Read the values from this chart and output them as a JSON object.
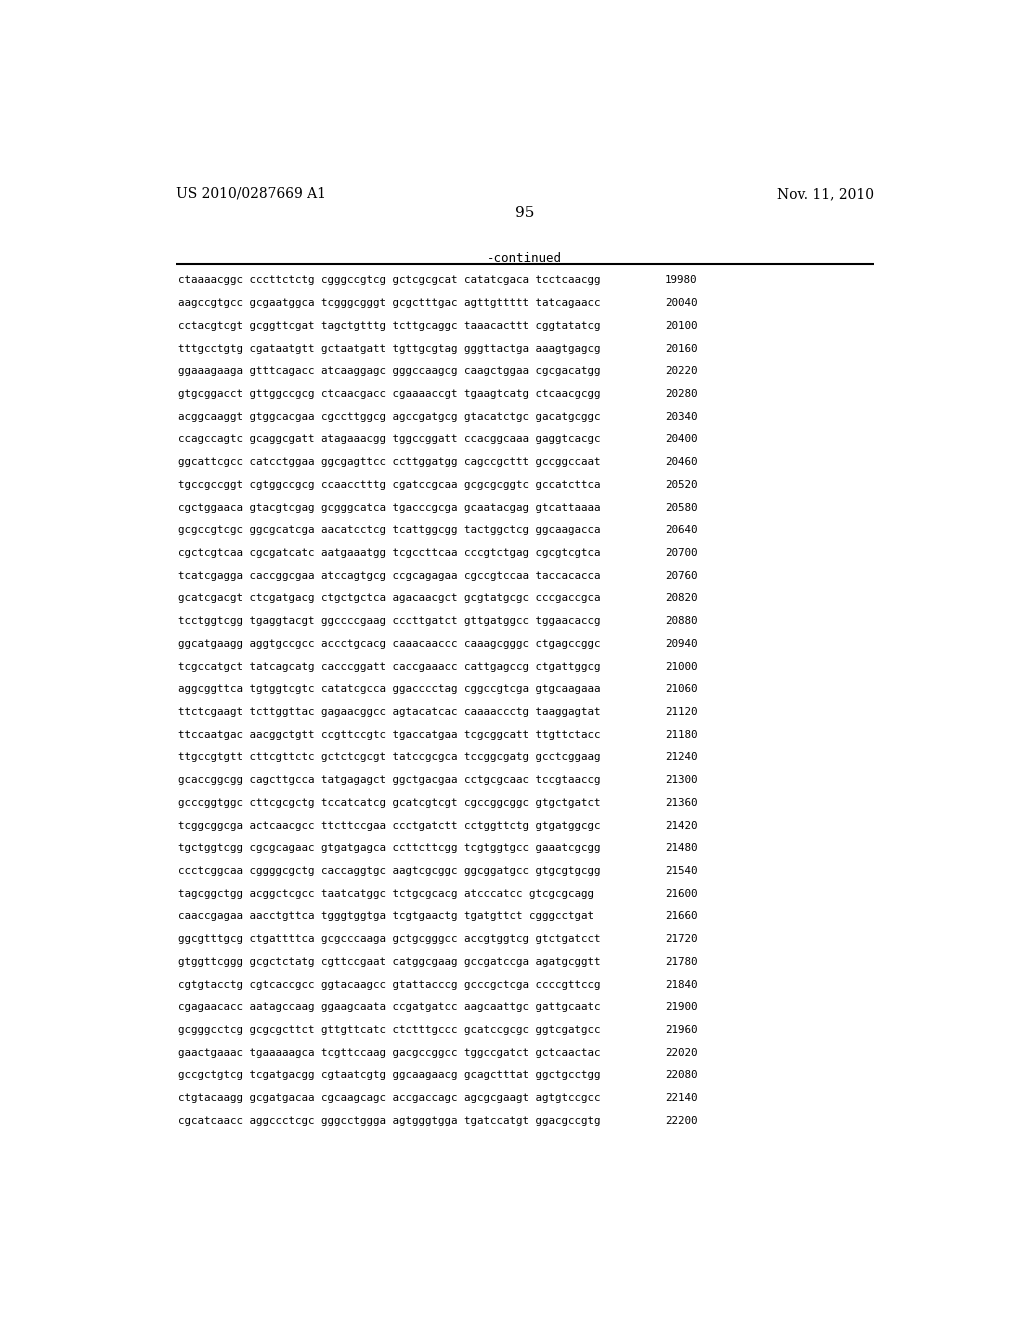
{
  "header_left": "US 2010/0287669 A1",
  "header_right": "Nov. 11, 2010",
  "page_number": "95",
  "continued_label": "-continued",
  "background_color": "#ffffff",
  "text_color": "#000000",
  "font_size_header": 10.0,
  "font_size_page": 11.0,
  "font_size_continued": 9.0,
  "font_size_sequence": 7.8,
  "sequence_lines": [
    [
      "ctaaaacggc cccttctctg cgggccgtcg gctcgcgcat catatcgaca tcctcaacgg",
      "19980"
    ],
    [
      "aagccgtgcc gcgaatggca tcgggcgggt gcgctttgac agttgttttt tatcagaacc",
      "20040"
    ],
    [
      "cctacgtcgt gcggttcgat tagctgtttg tcttgcaggc taaacacttt cggtatatcg",
      "20100"
    ],
    [
      "tttgcctgtg cgataatgtt gctaatgatt tgttgcgtag gggttactga aaagtgagcg",
      "20160"
    ],
    [
      "ggaaagaaga gtttcagacc atcaaggagc gggccaagcg caagctggaa cgcgacatgg",
      "20220"
    ],
    [
      "gtgcggacct gttggccgcg ctcaacgacc cgaaaaccgt tgaagtcatg ctcaacgcgg",
      "20280"
    ],
    [
      "acggcaaggt gtggcacgaa cgccttggcg agccgatgcg gtacatctgc gacatgcggc",
      "20340"
    ],
    [
      "ccagccagtc gcaggcgatt atagaaacgg tggccggatt ccacggcaaa gaggtcacgc",
      "20400"
    ],
    [
      "ggcattcgcc catcctggaa ggcgagttcc ccttggatgg cagccgcttt gccggccaat",
      "20460"
    ],
    [
      "tgccgccggt cgtggccgcg ccaacctttg cgatccgcaa gcgcgcggtc gccatcttca",
      "20520"
    ],
    [
      "cgctggaaca gtacgtcgag gcgggcatca tgacccgcga gcaatacgag gtcattaaaa",
      "20580"
    ],
    [
      "gcgccgtcgc ggcgcatcga aacatcctcg tcattggcgg tactggctcg ggcaagacca",
      "20640"
    ],
    [
      "cgctcgtcaa cgcgatcatc aatgaaatgg tcgccttcaa cccgtctgag cgcgtcgtca",
      "20700"
    ],
    [
      "tcatcgagga caccggcgaa atccagtgcg ccgcagagaa cgccgtccaa taccacacca",
      "20760"
    ],
    [
      "gcatcgacgt ctcgatgacg ctgctgctca agacaacgct gcgtatgcgc cccgaccgca",
      "20820"
    ],
    [
      "tcctggtcgg tgaggtacgt ggccccgaag cccttgatct gttgatggcc tggaacaccg",
      "20880"
    ],
    [
      "ggcatgaagg aggtgccgcc accctgcacg caaacaaccc caaagcgggc ctgagccggc",
      "20940"
    ],
    [
      "tcgccatgct tatcagcatg cacccggatt caccgaaacc cattgagccg ctgattggcg",
      "21000"
    ],
    [
      "aggcggttca tgtggtcgtc catatcgcca ggacccctag cggccgtcga gtgcaagaaa",
      "21060"
    ],
    [
      "ttctcgaagt tcttggttac gagaacggcc agtacatcac caaaaccctg taaggagtat",
      "21120"
    ],
    [
      "ttccaatgac aacggctgtt ccgttccgtc tgaccatgaa tcgcggcatt ttgttctacc",
      "21180"
    ],
    [
      "ttgccgtgtt cttcgttctc gctctcgcgt tatccgcgca tccggcgatg gcctcggaag",
      "21240"
    ],
    [
      "gcaccggcgg cagcttgcca tatgagagct ggctgacgaa cctgcgcaac tccgtaaccg",
      "21300"
    ],
    [
      "gcccggtggc cttcgcgctg tccatcatcg gcatcgtcgt cgccggcggc gtgctgatct",
      "21360"
    ],
    [
      "tcggcggcga actcaacgcc ttcttccgaa ccctgatctt cctggttctg gtgatggcgc",
      "21420"
    ],
    [
      "tgctggtcgg cgcgcagaac gtgatgagca ccttcttcgg tcgtggtgcc gaaatcgcgg",
      "21480"
    ],
    [
      "ccctcggcaa cggggcgctg caccaggtgc aagtcgcggc ggcggatgcc gtgcgtgcgg",
      "21540"
    ],
    [
      "tagcggctgg acggctcgcc taatcatggc tctgcgcacg atcccatcc gtcgcgcagg",
      "21600"
    ],
    [
      "caaccgagaa aacctgttca tgggtggtga tcgtgaactg tgatgttct cgggcctgat",
      "21660"
    ],
    [
      "ggcgtttgcg ctgattttca gcgcccaaga gctgcgggcc accgtggtcg gtctgatcct",
      "21720"
    ],
    [
      "gtggttcggg gcgctctatg cgttccgaat catggcgaag gccgatccga agatgcggtt",
      "21780"
    ],
    [
      "cgtgtacctg cgtcaccgcc ggtacaagcc gtattacccg gcccgctcga ccccgttccg",
      "21840"
    ],
    [
      "cgagaacacc aatagccaag ggaagcaata ccgatgatcc aagcaattgc gattgcaatc",
      "21900"
    ],
    [
      "gcgggcctcg gcgcgcttct gttgttcatc ctctttgccc gcatccgcgc ggtcgatgcc",
      "21960"
    ],
    [
      "gaactgaaac tgaaaaagca tcgttccaag gacgccggcc tggccgatct gctcaactac",
      "22020"
    ],
    [
      "gccgctgtcg tcgatgacgg cgtaatcgtg ggcaagaacg gcagctttat ggctgcctgg",
      "22080"
    ],
    [
      "ctgtacaagg gcgatgacaa cgcaagcagc accgaccagc agcgcgaagt agtgtccgcc",
      "22140"
    ],
    [
      "cgcatcaacc aggccctcgc gggcctggga agtgggtgga tgatccatgt ggacgccgtg",
      "22200"
    ]
  ]
}
